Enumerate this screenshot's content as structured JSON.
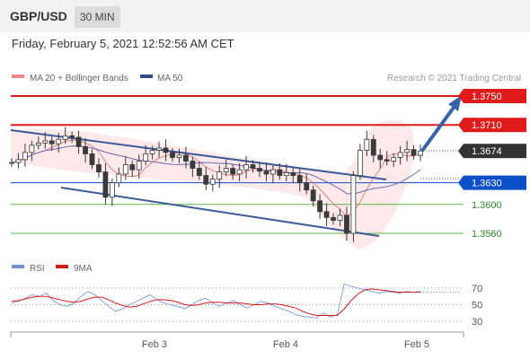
{
  "header": {
    "pair": "GBP/USD",
    "timeframe": "30 MIN"
  },
  "datetime": "Friday, February 5, 2021 12:52:56 AM CET",
  "legend": {
    "ma20": "MA 20 + Bollinger Bands",
    "ma50": "MA 50",
    "rsi": "RSI",
    "rsi_ma": "9MA"
  },
  "credit": "Research © 2021 Trading Central",
  "colors": {
    "resistance": "#e01b1b",
    "support": "#0b50c8",
    "support_minor": "#5cb84a",
    "candle": "#3a3a3a",
    "ma20": "#e58a8a",
    "bollinger": "#fbdcdc",
    "ma50": "#6a6ab0",
    "channel": "#3a5a9a",
    "arrow": "#3663a8",
    "rsi": "#6f8ed8",
    "rsi_ma": "#d11c1c"
  },
  "chart_data": {
    "type": "candlestick",
    "ylim": [
      1.3545,
      1.3762
    ],
    "xlabels": [
      "Feb 3",
      "Feb 4",
      "Feb 5"
    ],
    "levels": [
      {
        "label": "1.3750",
        "value": 1.375,
        "kind": "resistance"
      },
      {
        "label": "1.3710",
        "value": 1.371,
        "kind": "resistance"
      },
      {
        "label": "1.3674",
        "value": 1.3674,
        "kind": "last"
      },
      {
        "label": "1.3630",
        "value": 1.363,
        "kind": "support"
      },
      {
        "label": "1.3600",
        "value": 1.36,
        "kind": "support_minor"
      },
      {
        "label": "1.3560",
        "value": 1.356,
        "kind": "support_minor"
      }
    ],
    "close_path": [
      1.3658,
      1.3662,
      1.3672,
      1.3682,
      1.3685,
      1.3688,
      1.3684,
      1.369,
      1.3695,
      1.3693,
      1.368,
      1.367,
      1.3655,
      1.3645,
      1.361,
      1.363,
      1.3642,
      1.3655,
      1.3648,
      1.366,
      1.367,
      1.3675,
      1.3678,
      1.3672,
      1.3665,
      1.3668,
      1.366,
      1.365,
      1.364,
      1.3628,
      1.3635,
      1.3645,
      1.365,
      1.3642,
      1.3648,
      1.3655,
      1.365,
      1.3646,
      1.3642,
      1.3648,
      1.364,
      1.3644,
      1.364,
      1.363,
      1.362,
      1.3605,
      1.359,
      1.3582,
      1.3578,
      1.3585,
      1.356,
      1.364,
      1.3675,
      1.369,
      1.3668,
      1.3662,
      1.366,
      1.3665,
      1.3672,
      1.3676,
      1.3668,
      1.3674
    ],
    "rsi": {
      "ticks": [
        70,
        50,
        30
      ],
      "values": [
        52,
        54,
        58,
        62,
        60,
        64,
        55,
        50,
        48,
        52,
        60,
        66,
        62,
        55,
        48,
        42,
        45,
        50,
        54,
        58,
        62,
        56,
        52,
        50,
        48,
        45,
        50,
        55,
        58,
        52,
        48,
        52,
        55,
        50,
        46,
        50,
        54,
        52,
        48,
        45,
        42,
        38,
        36,
        35,
        34,
        40,
        35,
        38,
        75,
        72,
        70,
        68,
        66,
        64,
        66,
        65,
        64,
        66,
        65,
        66
      ],
      "ma9": [
        54,
        55,
        57,
        59,
        60,
        60,
        58,
        56,
        54,
        53,
        54,
        57,
        59,
        59,
        56,
        52,
        49,
        47,
        48,
        51,
        54,
        56,
        56,
        55,
        53,
        50,
        49,
        50,
        52,
        53,
        53,
        52,
        52,
        52,
        51,
        50,
        50,
        51,
        51,
        50,
        48,
        46,
        42,
        39,
        37,
        37,
        37,
        37,
        45,
        55,
        63,
        68,
        69,
        68,
        67,
        66,
        65,
        65,
        65,
        65
      ]
    }
  }
}
